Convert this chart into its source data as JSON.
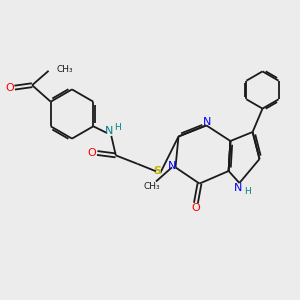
{
  "bg_color": "#ececec",
  "bond_color": "#1a1a1a",
  "n_color": "#0000ff",
  "o_color": "#ff0000",
  "s_color": "#b8b800",
  "nh_color": "#008080",
  "text_color": "#1a1a1a",
  "lw": 1.3,
  "fs": 8.0,
  "fs_small": 6.5,
  "xlim": [
    0,
    10
  ],
  "ylim": [
    0,
    10
  ]
}
